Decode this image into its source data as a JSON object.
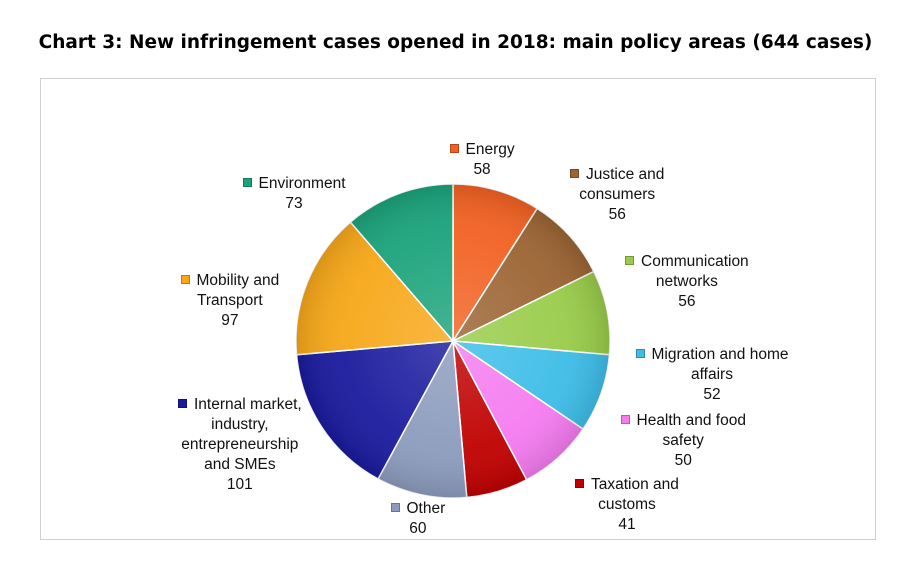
{
  "chart_data": {
    "type": "pie",
    "title": "Chart 3: New infringement cases opened in 2018: main policy areas (644 cases)",
    "slices": [
      {
        "label": [
          "Energy"
        ],
        "value": 58,
        "color": "#f26122"
      },
      {
        "label": [
          "Justice and",
          "consumers"
        ],
        "value": 56,
        "color": "#9b6433"
      },
      {
        "label": [
          "Communication",
          "networks"
        ],
        "value": 56,
        "color": "#99cc4a"
      },
      {
        "label": [
          "Migration and home",
          "affairs"
        ],
        "value": 52,
        "color": "#3dbde8"
      },
      {
        "label": [
          "Health and food",
          "safety"
        ],
        "value": 50,
        "color": "#f57bf0"
      },
      {
        "label": [
          "Taxation and",
          "customs"
        ],
        "value": 41,
        "color": "#c00000"
      },
      {
        "label": [
          "Other"
        ],
        "value": 60,
        "color": "#8c9bbd"
      },
      {
        "label": [
          "Internal market,",
          "industry,",
          "entrepreneurship",
          "and SMEs"
        ],
        "value": 101,
        "color": "#1a1a9e"
      },
      {
        "label": [
          "Mobility and",
          "Transport"
        ],
        "value": 97,
        "color": "#f7a718"
      },
      {
        "label": [
          "Environment"
        ],
        "value": 73,
        "color": "#1aa37a"
      }
    ],
    "start_angle_deg": 0,
    "direction": "clockwise",
    "data_labels": "category name and value"
  }
}
